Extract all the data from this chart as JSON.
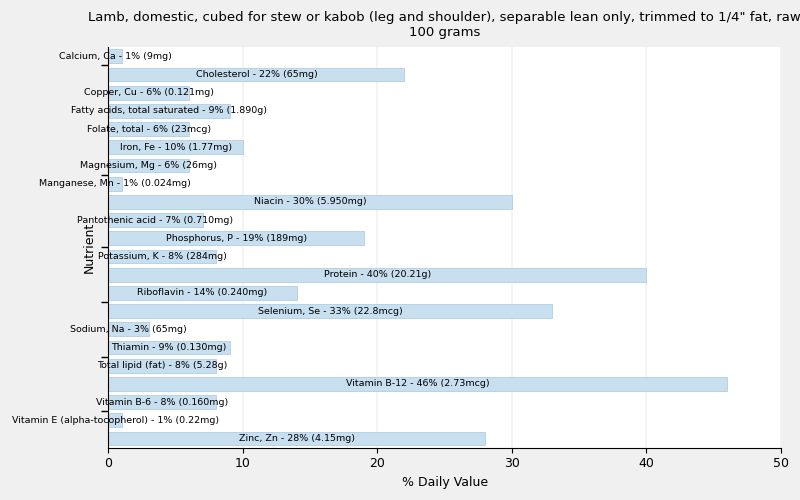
{
  "title": "Lamb, domestic, cubed for stew or kabob (leg and shoulder), separable lean only, trimmed to 1/4\" fat, raw\n100 grams",
  "xlabel": "% Daily Value",
  "ylabel": "Nutrient",
  "bar_color": "#c8dff0",
  "bar_edgecolor": "#a8c8e0",
  "background_color": "#f0f0f0",
  "plot_background": "#ffffff",
  "xlim": [
    0,
    50
  ],
  "xticks": [
    0,
    10,
    20,
    30,
    40,
    50
  ],
  "nutrients": [
    "Calcium, Ca - 1% (9mg)",
    "Cholesterol - 22% (65mg)",
    "Copper, Cu - 6% (0.121mg)",
    "Fatty acids, total saturated - 9% (1.890g)",
    "Folate, total - 6% (23mcg)",
    "Iron, Fe - 10% (1.77mg)",
    "Magnesium, Mg - 6% (26mg)",
    "Manganese, Mn - 1% (0.024mg)",
    "Niacin - 30% (5.950mg)",
    "Pantothenic acid - 7% (0.710mg)",
    "Phosphorus, P - 19% (189mg)",
    "Potassium, K - 8% (284mg)",
    "Protein - 40% (20.21g)",
    "Riboflavin - 14% (0.240mg)",
    "Selenium, Se - 33% (22.8mcg)",
    "Sodium, Na - 3% (65mg)",
    "Thiamin - 9% (0.130mg)",
    "Total lipid (fat) - 8% (5.28g)",
    "Vitamin B-12 - 46% (2.73mcg)",
    "Vitamin B-6 - 8% (0.160mg)",
    "Vitamin E (alpha-tocopherol) - 1% (0.22mg)",
    "Zinc, Zn - 28% (4.15mg)"
  ],
  "values": [
    1,
    22,
    6,
    9,
    6,
    10,
    6,
    1,
    30,
    7,
    19,
    8,
    40,
    14,
    33,
    3,
    9,
    8,
    46,
    8,
    1,
    28
  ],
  "label_fontsize": 6.8,
  "title_fontsize": 9.5,
  "ylabel_fontsize": 9,
  "xlabel_fontsize": 9
}
